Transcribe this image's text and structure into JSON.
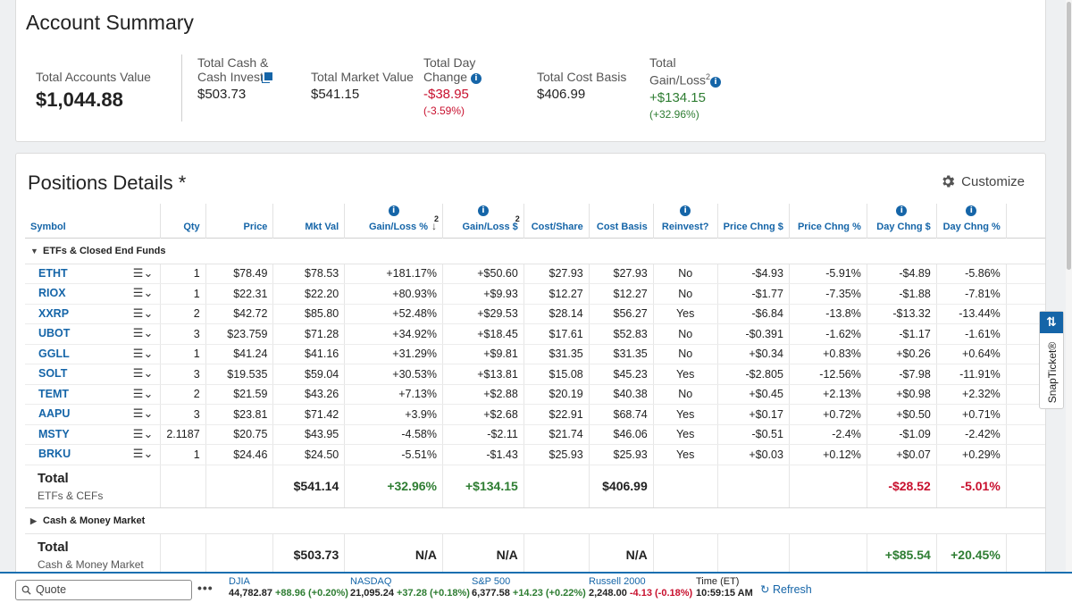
{
  "summary": {
    "title": "Account Summary",
    "total_accounts_label": "Total Accounts Value",
    "total_accounts_value": "$1,044.88",
    "cash_label_1": "Total Cash &",
    "cash_label_2": "Cash Invest",
    "cash_value": "$503.73",
    "market_label": "Total Market Value",
    "market_value": "$541.15",
    "day_change_label_1": "Total Day",
    "day_change_label_2": "Change",
    "day_change_value": "-$38.95",
    "day_change_pct": "(-3.59%)",
    "cost_basis_label": "Total Cost Basis",
    "cost_basis_value": "$406.99",
    "gain_label_1": "Total",
    "gain_label_2": "Gain/Loss",
    "gain_sup": "2",
    "gain_value": "+$134.15",
    "gain_pct": "(+32.96%)"
  },
  "positions": {
    "title": "Positions Details *",
    "customize_label": "Customize",
    "columns": [
      "Symbol",
      "Qty",
      "Price",
      "Mkt Val",
      "Gain/Loss %",
      "Gain/Loss $",
      "Cost/Share",
      "Cost Basis",
      "Reinvest?",
      "Price Chng $",
      "Price Chng %",
      "Day Chng $",
      "Day Chng %"
    ],
    "col_sup": "2",
    "group_etf": "ETFs & Closed End Funds",
    "rows": [
      {
        "symbol": "ETHT",
        "qty": "1",
        "price": "$78.49",
        "mkt": "$78.53",
        "glp": "+181.17%",
        "gld": "+$50.60",
        "cps": "$27.93",
        "cb": "$27.93",
        "reinv": "No",
        "pcd": "-$4.93",
        "pcp": "-5.91%",
        "dcd": "-$4.89",
        "dcp": "-5.86%"
      },
      {
        "symbol": "RIOX",
        "qty": "1",
        "price": "$22.31",
        "mkt": "$22.20",
        "glp": "+80.93%",
        "gld": "+$9.93",
        "cps": "$12.27",
        "cb": "$12.27",
        "reinv": "No",
        "pcd": "-$1.77",
        "pcp": "-7.35%",
        "dcd": "-$1.88",
        "dcp": "-7.81%"
      },
      {
        "symbol": "XXRP",
        "qty": "2",
        "price": "$42.72",
        "mkt": "$85.80",
        "glp": "+52.48%",
        "gld": "+$29.53",
        "cps": "$28.14",
        "cb": "$56.27",
        "reinv": "Yes",
        "pcd": "-$6.84",
        "pcp": "-13.8%",
        "dcd": "-$13.32",
        "dcp": "-13.44%"
      },
      {
        "symbol": "UBOT",
        "qty": "3",
        "price": "$23.759",
        "mkt": "$71.28",
        "glp": "+34.92%",
        "gld": "+$18.45",
        "cps": "$17.61",
        "cb": "$52.83",
        "reinv": "No",
        "pcd": "-$0.391",
        "pcp": "-1.62%",
        "dcd": "-$1.17",
        "dcp": "-1.61%"
      },
      {
        "symbol": "GGLL",
        "qty": "1",
        "price": "$41.24",
        "mkt": "$41.16",
        "glp": "+31.29%",
        "gld": "+$9.81",
        "cps": "$31.35",
        "cb": "$31.35",
        "reinv": "No",
        "pcd": "+$0.34",
        "pcp": "+0.83%",
        "dcd": "+$0.26",
        "dcp": "+0.64%"
      },
      {
        "symbol": "SOLT",
        "qty": "3",
        "price": "$19.535",
        "mkt": "$59.04",
        "glp": "+30.53%",
        "gld": "+$13.81",
        "cps": "$15.08",
        "cb": "$45.23",
        "reinv": "Yes",
        "pcd": "-$2.805",
        "pcp": "-12.56%",
        "dcd": "-$7.98",
        "dcp": "-11.91%"
      },
      {
        "symbol": "TEMT",
        "qty": "2",
        "price": "$21.59",
        "mkt": "$43.26",
        "glp": "+7.13%",
        "gld": "+$2.88",
        "cps": "$20.19",
        "cb": "$40.38",
        "reinv": "No",
        "pcd": "+$0.45",
        "pcp": "+2.13%",
        "dcd": "+$0.98",
        "dcp": "+2.32%"
      },
      {
        "symbol": "AAPU",
        "qty": "3",
        "price": "$23.81",
        "mkt": "$71.42",
        "glp": "+3.9%",
        "gld": "+$2.68",
        "cps": "$22.91",
        "cb": "$68.74",
        "reinv": "Yes",
        "pcd": "+$0.17",
        "pcp": "+0.72%",
        "dcd": "+$0.50",
        "dcp": "+0.71%"
      },
      {
        "symbol": "MSTY",
        "qty": "2.1187",
        "price": "$20.75",
        "mkt": "$43.95",
        "glp": "-4.58%",
        "gld": "-$2.11",
        "cps": "$21.74",
        "cb": "$46.06",
        "reinv": "Yes",
        "pcd": "-$0.51",
        "pcp": "-2.4%",
        "dcd": "-$1.09",
        "dcp": "-2.42%"
      },
      {
        "symbol": "BRKU",
        "qty": "1",
        "price": "$24.46",
        "mkt": "$24.50",
        "glp": "-5.51%",
        "gld": "-$1.43",
        "cps": "$25.93",
        "cb": "$25.93",
        "reinv": "Yes",
        "pcd": "+$0.03",
        "pcp": "+0.12%",
        "dcd": "+$0.07",
        "dcp": "+0.29%"
      }
    ],
    "etf_total": {
      "label": "Total",
      "sub": "ETFs & CEFs",
      "mkt": "$541.14",
      "glp": "+32.96%",
      "gld": "+$134.15",
      "cb": "$406.99",
      "dcd": "-$28.52",
      "dcp": "-5.01%"
    },
    "group_cash": "Cash & Money Market",
    "cash_total": {
      "label": "Total",
      "sub": "Cash & Money Market",
      "mkt": "$503.73",
      "glp": "N/A",
      "gld": "N/A",
      "cb": "N/A",
      "dcd": "+$85.54",
      "dcp": "+20.45%"
    }
  },
  "bottom": {
    "quote_placeholder": "Quote",
    "indices": [
      {
        "name": "DJIA",
        "value": "44,782.87",
        "change": "+88.96 (+0.20%)",
        "dir": "pos"
      },
      {
        "name": "NASDAQ",
        "value": "21,095.24",
        "change": "+37.28 (+0.18%)",
        "dir": "pos"
      },
      {
        "name": "S&P 500",
        "value": "6,377.58",
        "change": "+14.23 (+0.22%)",
        "dir": "pos"
      },
      {
        "name": "Russell 2000",
        "value": "2,248.00",
        "change": "-4.13 (-0.18%)",
        "dir": "neg"
      }
    ],
    "time_label": "Time (ET)",
    "time_value": "10:59:15 AM",
    "refresh_label": "Refresh"
  },
  "snapticket": {
    "label": "SnapTicket®"
  },
  "colors": {
    "accent": "#1565a8",
    "negative": "#c8102e",
    "positive": "#2e7d32"
  }
}
